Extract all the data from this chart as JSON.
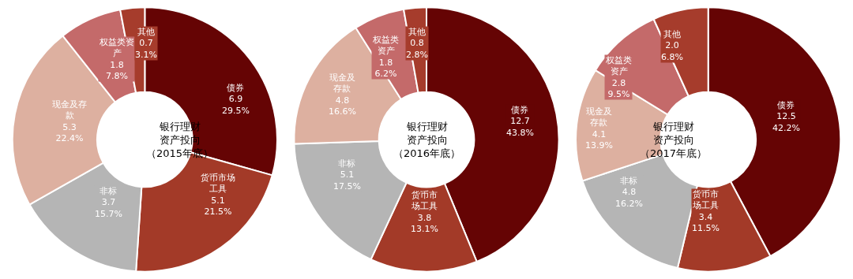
{
  "chart_data": [
    {
      "type": "donut",
      "title": "银行理财资产投向（2015年底）",
      "categories": [
        "债券",
        "货币市场工具",
        "非标",
        "现金及存款",
        "权益类资产",
        "其他"
      ],
      "values": [
        6.9,
        5.1,
        3.7,
        5.3,
        1.8,
        0.7
      ],
      "value_labels": [
        "6.9\n29.5%",
        "5.1\n21.5%",
        "3.7\n15.7%",
        "5.3\n22.4%",
        "1.8\n7.8%",
        "0.7\n3.1%"
      ],
      "colors": [
        "#650404",
        "#a33a28",
        "#b5b5b5",
        "#ddb0a0",
        "#c46a6a",
        "#a63c2c"
      ],
      "legend": false
    },
    {
      "type": "donut",
      "title": "银行理财资产投向（2016年底）",
      "categories": [
        "债券",
        "货币市场工具",
        "非标",
        "现金及存款",
        "权益类资产",
        "其他"
      ],
      "values": [
        12.7,
        3.8,
        5.1,
        4.8,
        1.8,
        0.8
      ],
      "value_labels": [
        "12.7\n43.8%",
        "3.8\n13.1%",
        "5.1\n17.5%",
        "4.8\n16.6%",
        "1.8\n6.2%",
        "0.8\n2.8%"
      ],
      "colors": [
        "#650404",
        "#a33a28",
        "#b5b5b5",
        "#ddb0a0",
        "#c46a6a",
        "#a63c2c"
      ],
      "legend": false
    },
    {
      "type": "donut",
      "title": "银行理财资产投向（2017年底）",
      "categories": [
        "债券",
        "货币市场工具",
        "非标",
        "现金及存款",
        "权益类资产",
        "其他"
      ],
      "values": [
        12.5,
        3.4,
        4.8,
        4.1,
        2.8,
        2.0
      ],
      "value_labels": [
        "12.5\n42.2%",
        "3.4\n11.5%",
        "4.8\n16.2%",
        "4.1\n13.9%",
        "2.8\n9.5%",
        "2.0\n6.8%"
      ],
      "colors": [
        "#650404",
        "#a33a28",
        "#b5b5b5",
        "#ddb0a0",
        "#c46a6a",
        "#a63c2c"
      ],
      "legend": false
    }
  ]
}
